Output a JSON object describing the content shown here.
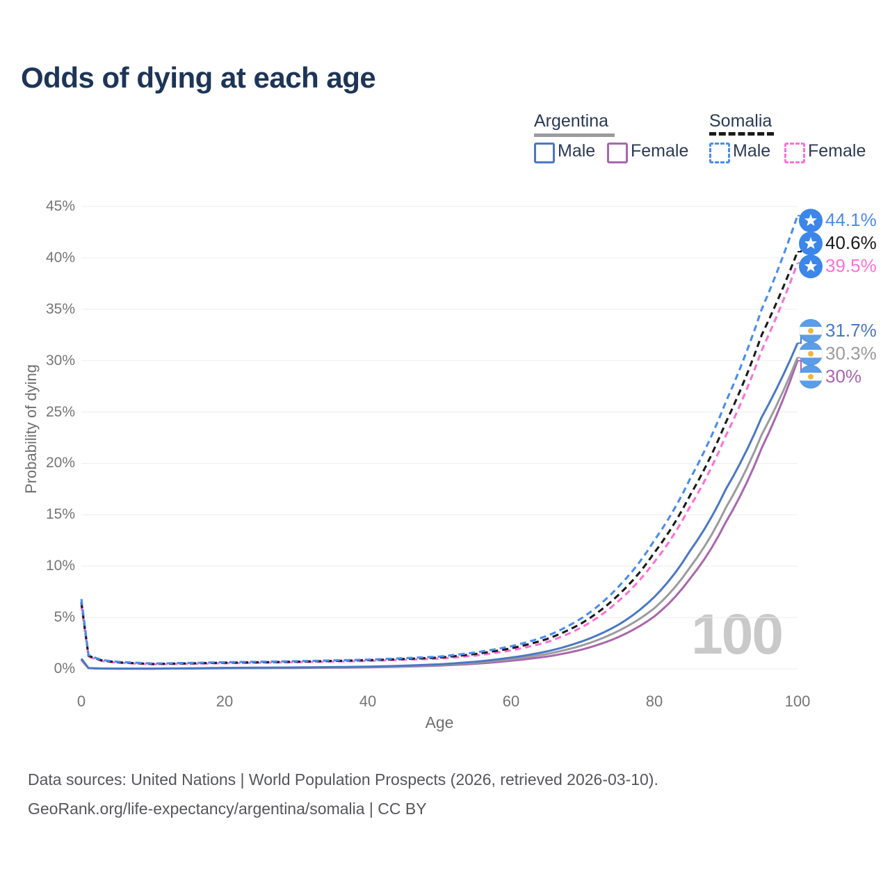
{
  "title": "Odds of dying at each age",
  "watermark_age": "100",
  "legend": {
    "groups": [
      {
        "country": "Argentina",
        "items": [
          {
            "label": "Male"
          },
          {
            "label": "Female"
          }
        ]
      },
      {
        "country": "Somalia",
        "items": [
          {
            "label": "Male"
          },
          {
            "label": "Female"
          }
        ]
      }
    ]
  },
  "footer": {
    "line1": "Data sources: United Nations | World Population Prospects (2026, retrieved 2026-03-10).",
    "line2": "GeoRank.org/life-expectancy/argentina/somalia | CC BY"
  },
  "colors": {
    "title": "#1d3557",
    "legend_text": "#2b3a55",
    "axis_text": "#757575",
    "axis_title_text": "#6f6f6f",
    "grid": "#ededed",
    "watermark": "#c9c9c9",
    "footer_text": "#55565a",
    "argentina_male": "#4a78c4",
    "argentina_total": "#9b9b9b",
    "argentina_female": "#a966ae",
    "somalia_male": "#4a8cf0",
    "somalia_total": "#1a1a1a",
    "somalia_female": "#ff70d6",
    "flag_somalia_bg": "#3b86e8",
    "flag_somalia_star": "#ffffff",
    "flag_argentina_band": "#5b9de6",
    "flag_argentina_white": "#ffffff",
    "flag_argentina_sun": "#f0b63e"
  },
  "chart_data": {
    "type": "line",
    "title": "Odds of dying at each age",
    "xlabel": "Age",
    "ylabel": "Probability of dying",
    "xlim": [
      0,
      100
    ],
    "ylim_percent": [
      0,
      45
    ],
    "x_ticks": [
      0,
      20,
      40,
      60,
      80,
      100
    ],
    "y_ticks_percent": [
      0,
      5,
      10,
      15,
      20,
      25,
      30,
      35,
      40,
      45
    ],
    "grid": true,
    "legend_position": "top-right",
    "x": [
      0,
      1,
      3,
      5,
      10,
      20,
      30,
      40,
      50,
      55,
      60,
      65,
      70,
      75,
      80,
      85,
      90,
      95,
      100
    ],
    "series": [
      {
        "name": "argentina-female",
        "country": "Argentina",
        "legend_label": "Female",
        "color_key": "argentina_female",
        "dash": false,
        "end_label": "30%",
        "values_percent": [
          0.85,
          0.07,
          0.03,
          0.025,
          0.023,
          0.06,
          0.09,
          0.15,
          0.32,
          0.5,
          0.8,
          1.2,
          1.9,
          3.1,
          5.1,
          8.8,
          14.3,
          21.5,
          30.0
        ]
      },
      {
        "name": "argentina-total",
        "country": "Argentina",
        "legend_label": null,
        "color_key": "argentina_total",
        "dash": false,
        "end_label": "30.3%",
        "values_percent": [
          0.92,
          0.075,
          0.035,
          0.028,
          0.026,
          0.08,
          0.12,
          0.18,
          0.38,
          0.6,
          0.95,
          1.45,
          2.3,
          3.7,
          5.9,
          9.9,
          15.7,
          22.8,
          30.3
        ]
      },
      {
        "name": "argentina-male",
        "country": "Argentina",
        "legend_label": "Male",
        "color_key": "argentina_male",
        "dash": false,
        "end_label": "31.7%",
        "values_percent": [
          1.0,
          0.08,
          0.04,
          0.03,
          0.03,
          0.1,
          0.14,
          0.22,
          0.45,
          0.7,
          1.1,
          1.7,
          2.7,
          4.3,
          7.0,
          11.5,
          17.5,
          24.5,
          31.7
        ]
      },
      {
        "name": "somalia-female",
        "country": "Somalia",
        "legend_label": "Female",
        "color_key": "somalia_female",
        "dash": true,
        "end_label": "39.5%",
        "values_percent": [
          6.2,
          1.2,
          0.75,
          0.6,
          0.45,
          0.55,
          0.65,
          0.78,
          1.0,
          1.3,
          1.8,
          2.6,
          4.1,
          6.6,
          10.4,
          15.8,
          22.7,
          31.0,
          39.5
        ]
      },
      {
        "name": "somalia-total",
        "country": "Somalia",
        "legend_label": null,
        "color_key": "somalia_total",
        "dash": true,
        "end_label": "40.6%",
        "values_percent": [
          6.5,
          1.28,
          0.8,
          0.65,
          0.48,
          0.6,
          0.7,
          0.85,
          1.1,
          1.45,
          2.0,
          2.9,
          4.5,
          7.2,
          11.3,
          16.9,
          24.0,
          32.5,
          40.6
        ]
      },
      {
        "name": "somalia-male",
        "country": "Somalia",
        "legend_label": "Male",
        "color_key": "somalia_male",
        "dash": true,
        "end_label": "44.1%",
        "values_percent": [
          6.8,
          1.35,
          0.85,
          0.7,
          0.52,
          0.65,
          0.75,
          0.9,
          1.2,
          1.6,
          2.2,
          3.2,
          5.0,
          8.0,
          12.5,
          18.5,
          26.0,
          35.0,
          44.1
        ]
      }
    ]
  }
}
